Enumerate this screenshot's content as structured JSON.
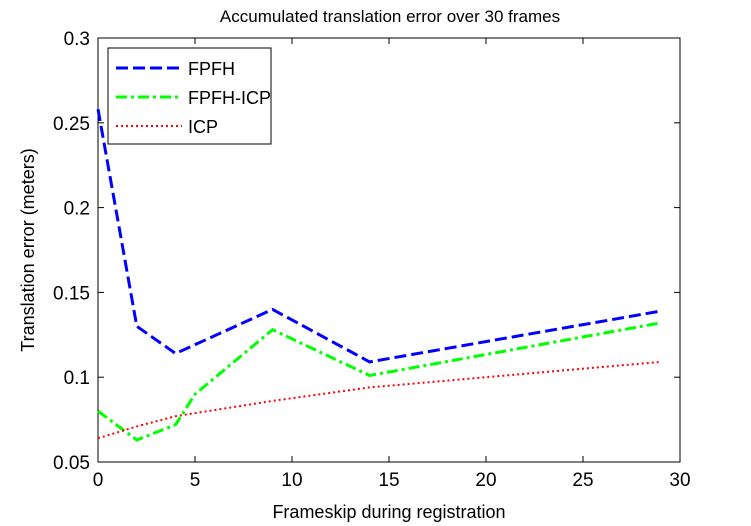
{
  "chart_data": {
    "type": "line",
    "title": "Accumulated translation error over 30 frames",
    "xlabel": "Frameskip during registration",
    "ylabel": "Translation error (meters)",
    "xlim": [
      0,
      30
    ],
    "ylim": [
      0.05,
      0.3
    ],
    "xticks": [
      0,
      5,
      10,
      15,
      20,
      25,
      30
    ],
    "yticks": [
      0.05,
      0.1,
      0.15,
      0.2,
      0.25,
      0.3
    ],
    "xtick_labels": [
      "0",
      "5",
      "10",
      "15",
      "20",
      "25",
      "30"
    ],
    "ytick_labels": [
      "0.05",
      "0.1",
      "0.15",
      "0.2",
      "0.25",
      "0.3"
    ],
    "grid": false,
    "legend_position": "top-left",
    "series": [
      {
        "name": "FPFH",
        "color": "#0000ff",
        "style": "dashed",
        "x": [
          0,
          2,
          4,
          9,
          14,
          29
        ],
        "y": [
          0.258,
          0.13,
          0.114,
          0.14,
          0.109,
          0.139
        ]
      },
      {
        "name": "FPFH-ICP",
        "color": "#00ff00",
        "style": "dashdot",
        "x": [
          0,
          2,
          4,
          5,
          9,
          14,
          29
        ],
        "y": [
          0.08,
          0.063,
          0.072,
          0.09,
          0.128,
          0.101,
          0.132
        ]
      },
      {
        "name": "ICP",
        "color": "#ff0000",
        "style": "dotted",
        "x": [
          0,
          2,
          4,
          9,
          14,
          29
        ],
        "y": [
          0.064,
          0.071,
          0.077,
          0.086,
          0.094,
          0.109
        ]
      }
    ]
  }
}
